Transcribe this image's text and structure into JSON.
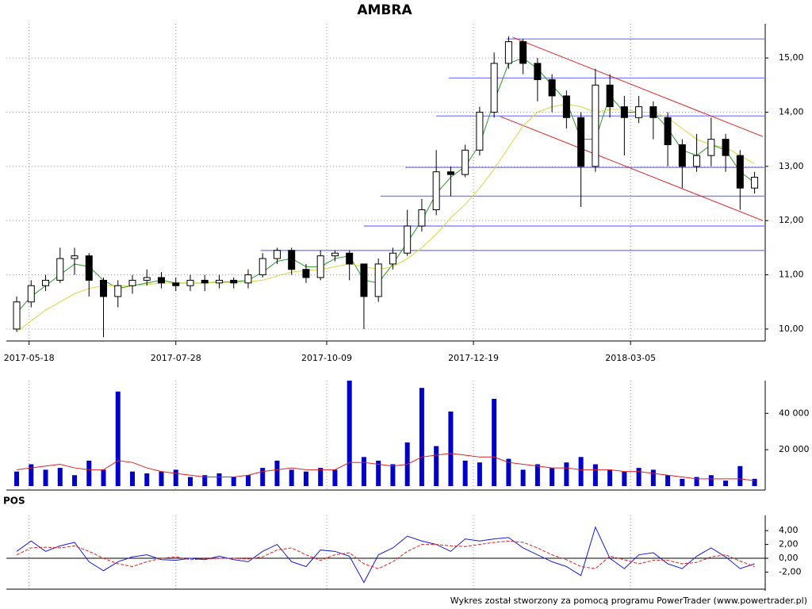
{
  "chart_data": [
    {
      "type": "candlestick",
      "title": "AMBRA",
      "x": [
        "2017-05-12",
        "2017-05-19",
        "2017-05-26",
        "2017-06-02",
        "2017-06-09",
        "2017-06-16",
        "2017-06-23",
        "2017-06-30",
        "2017-07-07",
        "2017-07-14",
        "2017-07-21",
        "2017-07-28",
        "2017-08-04",
        "2017-08-11",
        "2017-08-18",
        "2017-08-25",
        "2017-09-01",
        "2017-09-08",
        "2017-09-15",
        "2017-09-22",
        "2017-09-29",
        "2017-10-06",
        "2017-10-13",
        "2017-10-20",
        "2017-10-27",
        "2017-11-03",
        "2017-11-10",
        "2017-11-17",
        "2017-11-24",
        "2017-12-01",
        "2017-12-08",
        "2017-12-15",
        "2017-12-22",
        "2017-12-29",
        "2018-01-05",
        "2018-01-12",
        "2018-01-19",
        "2018-01-26",
        "2018-02-02",
        "2018-02-09",
        "2018-02-16",
        "2018-02-23",
        "2018-03-02",
        "2018-03-09",
        "2018-03-16",
        "2018-03-23",
        "2018-03-30",
        "2018-04-06",
        "2018-04-13",
        "2018-04-20",
        "2018-04-27",
        "2018-05-04"
      ],
      "open": [
        10.0,
        10.5,
        10.8,
        10.9,
        11.3,
        11.35,
        10.9,
        10.6,
        10.8,
        10.9,
        10.95,
        10.85,
        10.8,
        10.9,
        10.85,
        10.9,
        10.85,
        11.0,
        11.3,
        11.45,
        11.1,
        10.95,
        11.35,
        11.4,
        11.2,
        10.6,
        11.2,
        11.4,
        11.9,
        12.2,
        12.9,
        12.85,
        13.3,
        14.0,
        14.9,
        15.3,
        14.9,
        14.6,
        14.3,
        13.9,
        13.0,
        14.5,
        14.1,
        13.9,
        14.1,
        13.9,
        13.4,
        13.0,
        13.2,
        13.5,
        13.2,
        12.6
      ],
      "high": [
        10.6,
        10.9,
        11.0,
        11.5,
        11.5,
        11.4,
        10.95,
        10.9,
        11.0,
        11.1,
        11.05,
        10.95,
        11.0,
        11.0,
        11.0,
        10.95,
        11.1,
        11.4,
        11.5,
        11.5,
        11.2,
        11.45,
        11.45,
        11.45,
        11.2,
        11.3,
        11.5,
        12.2,
        12.4,
        13.3,
        13.0,
        13.4,
        14.1,
        15.1,
        15.4,
        15.35,
        15.0,
        14.7,
        14.4,
        14.0,
        14.8,
        14.7,
        14.3,
        14.3,
        14.2,
        14.0,
        13.5,
        13.6,
        13.9,
        13.6,
        13.3,
        12.9
      ],
      "low": [
        9.95,
        10.4,
        10.7,
        10.85,
        11.0,
        10.6,
        9.85,
        10.4,
        10.65,
        10.8,
        10.75,
        10.7,
        10.7,
        10.7,
        10.75,
        10.75,
        10.75,
        10.95,
        11.2,
        11.0,
        10.85,
        10.9,
        11.25,
        10.9,
        10.0,
        10.5,
        11.1,
        11.35,
        11.8,
        12.1,
        12.45,
        12.8,
        13.2,
        13.9,
        14.8,
        14.7,
        14.2,
        14.0,
        13.7,
        12.25,
        12.9,
        13.9,
        13.2,
        13.8,
        13.5,
        13.0,
        12.6,
        12.9,
        13.0,
        12.9,
        12.2,
        12.5
      ],
      "close": [
        10.5,
        10.8,
        10.9,
        11.3,
        11.35,
        10.9,
        10.6,
        10.8,
        10.9,
        10.95,
        10.85,
        10.8,
        10.9,
        10.85,
        10.9,
        10.85,
        11.0,
        11.3,
        11.45,
        11.1,
        10.95,
        11.35,
        11.4,
        11.2,
        10.6,
        11.2,
        11.4,
        11.9,
        12.2,
        12.9,
        12.85,
        13.3,
        14.0,
        14.9,
        15.3,
        14.9,
        14.6,
        14.3,
        13.9,
        13.0,
        14.5,
        14.1,
        13.9,
        14.1,
        13.9,
        13.4,
        13.0,
        13.2,
        13.5,
        13.2,
        12.6,
        12.8
      ],
      "overlays": [
        {
          "color": "#2e9a2e",
          "values": [
            10.3,
            10.6,
            10.8,
            11.0,
            11.2,
            11.15,
            10.9,
            10.75,
            10.8,
            10.85,
            10.9,
            10.85,
            10.85,
            10.85,
            10.87,
            10.87,
            10.9,
            11.05,
            11.25,
            11.3,
            11.15,
            11.15,
            11.3,
            11.35,
            10.9,
            10.85,
            11.2,
            11.6,
            12.0,
            12.5,
            12.8,
            13.0,
            13.4,
            14.2,
            14.9,
            15.0,
            14.8,
            14.5,
            14.2,
            13.5,
            13.5,
            14.3,
            14.0,
            14.0,
            14.0,
            13.7,
            13.3,
            13.2,
            13.4,
            13.3,
            12.9,
            12.7
          ]
        },
        {
          "color": "#d8d840",
          "values": [
            9.95,
            10.15,
            10.35,
            10.5,
            10.65,
            10.75,
            10.8,
            10.8,
            10.8,
            10.82,
            10.85,
            10.85,
            10.85,
            10.85,
            10.86,
            10.86,
            10.87,
            10.9,
            10.98,
            11.05,
            11.08,
            11.1,
            11.15,
            11.2,
            11.15,
            11.1,
            11.15,
            11.3,
            11.5,
            11.75,
            12.05,
            12.3,
            12.6,
            12.95,
            13.35,
            13.75,
            14.0,
            14.1,
            14.15,
            14.1,
            14.0,
            14.05,
            14.05,
            14.0,
            14.0,
            13.9,
            13.7,
            13.5,
            13.4,
            13.35,
            13.2,
            13.05
          ]
        }
      ],
      "level_color": "#7f7fff",
      "levels": [
        {
          "value": 15.35,
          "from": "2018-01-04"
        },
        {
          "value": 14.63,
          "from": "2017-12-07"
        },
        {
          "value": 13.93,
          "from": "2017-12-01"
        },
        {
          "value": 12.98,
          "from": "2017-11-16"
        },
        {
          "value": 12.45,
          "from": "2017-11-04"
        },
        {
          "value": 11.9,
          "from": "2017-10-27"
        },
        {
          "value": 11.45,
          "from": "2017-09-07"
        }
      ],
      "trend_color": "#e02020",
      "trendlines": [
        {
          "x": [
            "2018-01-07",
            "2018-05-08"
          ],
          "values": [
            15.38,
            13.55
          ]
        },
        {
          "x": [
            "2018-01-01",
            "2018-05-08"
          ],
          "values": [
            13.92,
            12.0
          ]
        }
      ],
      "xlim": [
        "2017-05-07",
        "2018-05-08"
      ],
      "xticks": [
        "2017-05-18",
        "2017-07-28",
        "2017-10-09",
        "2017-12-19",
        "2018-03-05"
      ],
      "ylim": [
        9.78,
        15.63
      ],
      "yticks": [
        {
          "value": 10,
          "label": "10,00"
        },
        {
          "value": 11,
          "label": "11,00"
        },
        {
          "value": 12,
          "label": "12,00"
        },
        {
          "value": 13,
          "label": "13,00"
        },
        {
          "value": 14,
          "label": "14,00"
        },
        {
          "value": 15,
          "label": "15,00"
        }
      ],
      "grid": true
    },
    {
      "type": "bar",
      "color": "#0000c8",
      "line_color": "#e02020",
      "values": [
        8000,
        12000,
        9000,
        10000,
        6000,
        14000,
        9000,
        52000,
        8000,
        7000,
        8000,
        9000,
        5000,
        6000,
        7000,
        5000,
        6000,
        10000,
        14000,
        9000,
        8000,
        10000,
        9000,
        58000,
        16000,
        14000,
        12000,
        24000,
        54000,
        22000,
        41000,
        14000,
        13000,
        48000,
        15000,
        9000,
        12000,
        10000,
        13000,
        16000,
        12000,
        9000,
        8000,
        10000,
        9000,
        6000,
        4000,
        5000,
        6000,
        3000,
        11000,
        4000
      ],
      "average": [
        9000,
        10000,
        11000,
        12000,
        10000,
        9000,
        9000,
        14000,
        13000,
        10000,
        8000,
        7000,
        6000,
        5000,
        5000,
        5000,
        6000,
        8000,
        9000,
        10000,
        9000,
        9000,
        9000,
        13000,
        13000,
        12000,
        11000,
        12000,
        16000,
        17000,
        18000,
        17000,
        16000,
        16000,
        13000,
        12000,
        11000,
        10000,
        10000,
        9000,
        9000,
        9000,
        8000,
        8000,
        7000,
        6000,
        5000,
        4000,
        4000,
        4000,
        4000,
        3000
      ],
      "ylim": [
        0,
        58000
      ],
      "yticks": [
        {
          "value": 20000,
          "label": "20 000"
        },
        {
          "value": 40000,
          "label": "40 000"
        }
      ]
    },
    {
      "type": "line",
      "title": "POS",
      "series": [
        {
          "color": "#1a1ae0",
          "dashed": false,
          "values": [
            1.0,
            2.5,
            1.0,
            1.8,
            2.3,
            -0.5,
            -1.8,
            -0.5,
            0.2,
            0.5,
            -0.2,
            -0.3,
            0.0,
            -0.2,
            0.3,
            -0.2,
            -0.5,
            1.0,
            2.0,
            -0.5,
            -1.2,
            1.2,
            1.0,
            0.3,
            -3.5,
            0.5,
            1.5,
            3.2,
            2.5,
            2.0,
            1.0,
            2.8,
            2.5,
            2.8,
            3.0,
            1.5,
            0.5,
            -0.5,
            -1.2,
            -2.5,
            4.5,
            0.0,
            -1.5,
            0.5,
            0.8,
            -0.8,
            -1.5,
            0.3,
            1.5,
            0.2,
            -1.5,
            -0.8
          ]
        },
        {
          "color": "#e02020",
          "dashed": true,
          "values": [
            0.5,
            1.5,
            1.6,
            1.5,
            1.8,
            1.0,
            0.0,
            -0.8,
            -1.2,
            -0.5,
            0.0,
            0.2,
            -0.2,
            -0.1,
            0.0,
            0.0,
            -0.1,
            0.2,
            1.2,
            1.5,
            0.5,
            -0.3,
            0.5,
            0.8,
            -0.8,
            -1.5,
            -0.5,
            1.0,
            2.0,
            2.0,
            1.8,
            1.7,
            2.0,
            2.3,
            2.5,
            2.3,
            1.5,
            0.5,
            -0.2,
            -1.2,
            -1.5,
            0.3,
            -0.2,
            -0.8,
            -0.3,
            -0.3,
            -0.8,
            -0.6,
            0.2,
            0.5,
            -0.4,
            -1.2
          ]
        }
      ],
      "ylim": [
        -4.7,
        6.2
      ],
      "yticks": [
        {
          "value": -2,
          "label": "-2,00"
        },
        {
          "value": 0,
          "label": "0,00"
        },
        {
          "value": 2,
          "label": "2,00"
        },
        {
          "value": 4,
          "label": "4,00"
        }
      ]
    }
  ],
  "footer": "Wykres został stworzony za pomocą programu PowerTrader (www.powertrader.pl)"
}
